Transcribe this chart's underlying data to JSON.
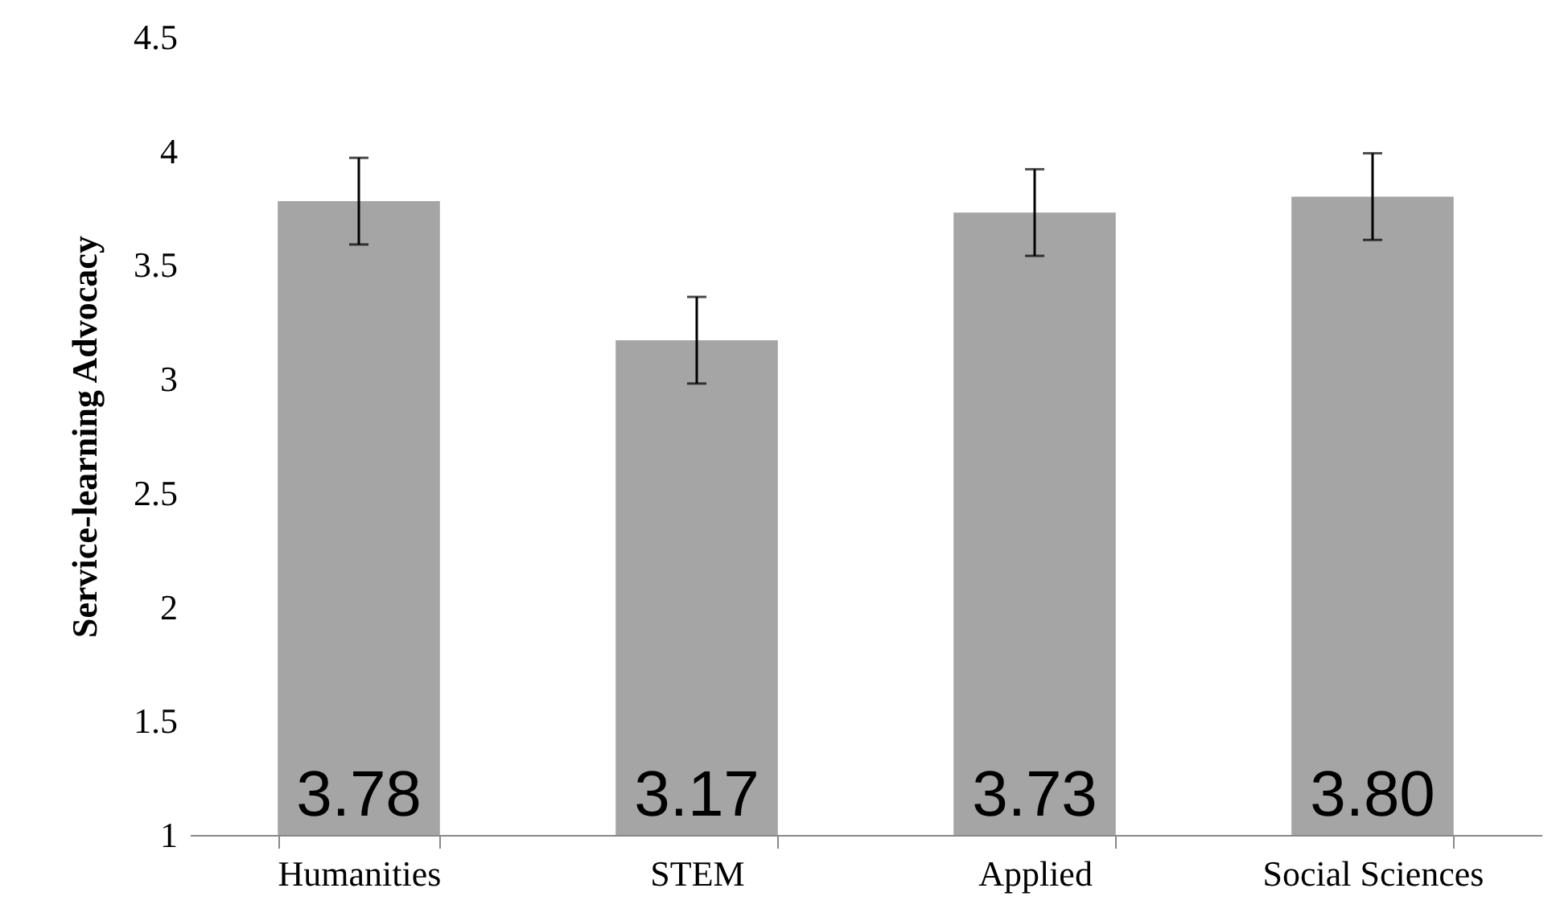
{
  "chart_data": {
    "type": "bar",
    "ylabel": "Service-learning Advocacy",
    "categories": [
      "Humanities",
      "STEM",
      "Applied",
      "Social Sciences"
    ],
    "values": [
      3.78,
      3.17,
      3.73,
      3.8
    ],
    "value_labels": [
      "3.78",
      "3.17",
      "3.73",
      "3.80"
    ],
    "errors": [
      0.19,
      0.19,
      0.19,
      0.19
    ],
    "color": "#a5a5a5",
    "ylim": [
      1,
      4.5
    ],
    "yticks": [
      1,
      1.5,
      2,
      2.5,
      3,
      3.5,
      4,
      4.5
    ],
    "grid": false
  }
}
